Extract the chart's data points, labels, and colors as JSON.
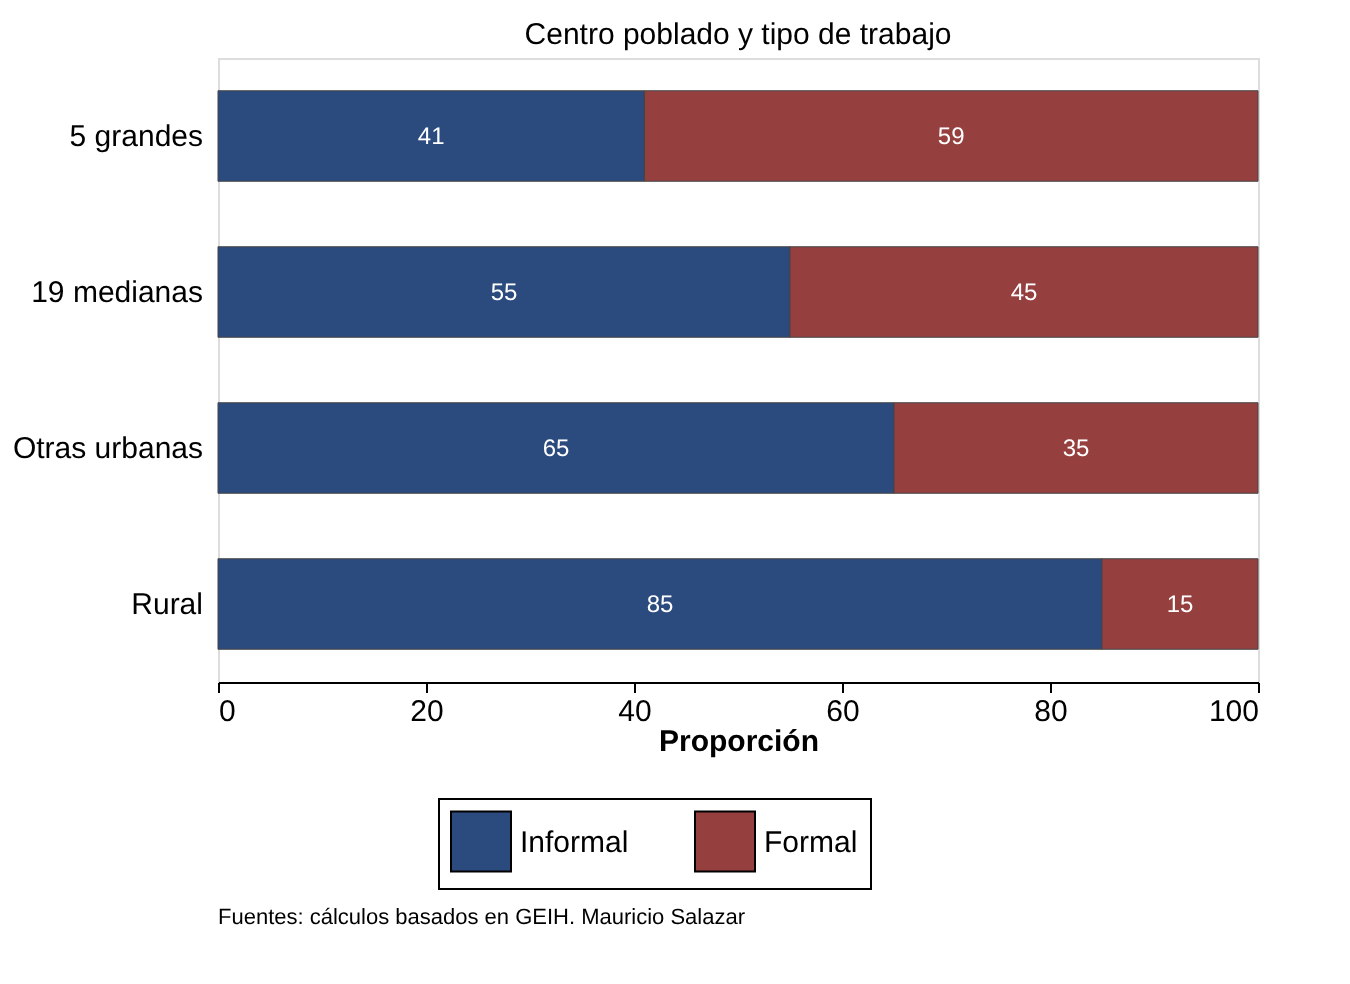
{
  "chart_data": {
    "type": "bar",
    "orientation": "horizontal",
    "stacked": true,
    "title": "Centro poblado y tipo de trabajo",
    "xlabel": "Proporción",
    "categories": [
      "5 grandes",
      "19 medianas",
      "Otras urbanas",
      "Rural"
    ],
    "series": [
      {
        "name": "Informal",
        "color": "#2b4a7e",
        "values": [
          41,
          55,
          65,
          85
        ]
      },
      {
        "name": "Formal",
        "color": "#963f3f",
        "values": [
          59,
          45,
          35,
          15
        ]
      }
    ],
    "xlim": [
      0,
      100
    ],
    "xticks": [
      0,
      20,
      40,
      60,
      80,
      100
    ],
    "data_labels": true,
    "grid": false,
    "legend": "bottom",
    "annotations": [
      "Fuentes: cálculos basados en GEIH. Mauricio Salazar"
    ]
  }
}
